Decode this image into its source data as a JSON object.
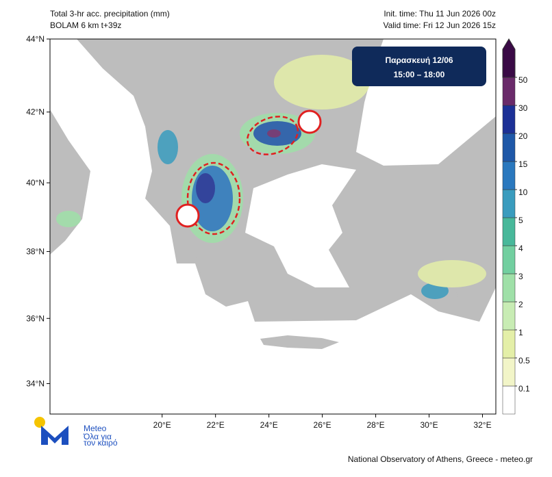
{
  "header": {
    "title_left": [
      "Total 3-hr acc. precipitation (mm)",
      "BOLAM 6 km t+39z"
    ],
    "title_right": [
      "Init. time: Thu 11 Jun 2026 00z",
      "Valid time: Fri 12 Jun 2026 15z"
    ]
  },
  "date_box": {
    "day": "Παρασκευή 12/06",
    "hours": "15:00 – 18:00"
  },
  "map": {
    "lon_range": [
      15.8,
      32.5
    ],
    "lat_range": [
      33.05,
      44
    ],
    "lon_ticks": [
      {
        "value": 20,
        "label": "20°E"
      },
      {
        "value": 22,
        "label": "22°E"
      },
      {
        "value": 24,
        "label": "24°E"
      },
      {
        "value": 26,
        "label": "26°E"
      },
      {
        "value": 28,
        "label": "28°E"
      },
      {
        "value": 30,
        "label": "30°E"
      },
      {
        "value": 32,
        "label": "32°E"
      }
    ],
    "lat_ticks": [
      {
        "value": 44,
        "label": "44°N"
      },
      {
        "value": 42,
        "label": "42°N"
      },
      {
        "value": 40,
        "label": "40°N"
      },
      {
        "value": 38,
        "label": "38°N"
      },
      {
        "value": 36,
        "label": "36°N"
      },
      {
        "value": 34,
        "label": "34°N"
      }
    ]
  },
  "colorbar": {
    "levels": [
      0.1,
      0.5,
      1,
      2,
      3,
      4,
      5,
      10,
      15,
      20,
      30,
      50
    ],
    "colors": [
      "#ffffff",
      "#f2f5c8",
      "#e4efa8",
      "#c8ecb4",
      "#9fe0a8",
      "#72cfa0",
      "#48b89a",
      "#3a9cbe",
      "#2a78be",
      "#1e58a8",
      "#1c3096",
      "#6a2a6a",
      "#3a0a46"
    ]
  },
  "logo": {
    "name": "Meteo",
    "tagline": [
      "Όλα για",
      "τον καιρό"
    ]
  },
  "footer": "National Observatory of Athens, Greece - meteo.gr"
}
